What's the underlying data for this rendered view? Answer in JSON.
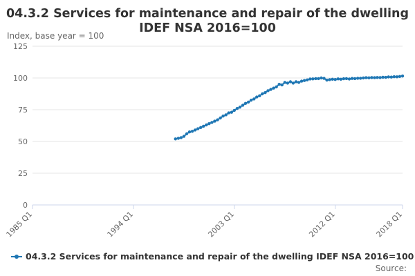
{
  "chart_data": {
    "type": "line",
    "title_lines": [
      "04.3.2 Services for maintenance and repair of the dwelling",
      "IDEF NSA 2016=100"
    ],
    "ylabel": "Index, base year = 100",
    "ylim": [
      0,
      125
    ],
    "yticks": [
      "0",
      "25",
      "50",
      "75",
      "100",
      "125"
    ],
    "xticks": [
      "1985 Q1",
      "1994 Q1",
      "2003 Q1",
      "2012 Q1",
      "2018 Q1"
    ],
    "grid": true,
    "legend_position": "bottom",
    "series": [
      {
        "name": "04.3.2 Services for maintenance and repair of the dwelling IDEF NSA 2016=100",
        "color": "#1f77b4",
        "x": [
          "1997 Q4",
          "1998 Q1",
          "1998 Q2",
          "1998 Q3",
          "1998 Q4",
          "1999 Q1",
          "1999 Q2",
          "1999 Q3",
          "1999 Q4",
          "2000 Q1",
          "2000 Q2",
          "2000 Q3",
          "2000 Q4",
          "2001 Q1",
          "2001 Q2",
          "2001 Q3",
          "2001 Q4",
          "2002 Q1",
          "2002 Q2",
          "2002 Q3",
          "2002 Q4",
          "2003 Q1",
          "2003 Q2",
          "2003 Q3",
          "2003 Q4",
          "2004 Q1",
          "2004 Q2",
          "2004 Q3",
          "2004 Q4",
          "2005 Q1",
          "2005 Q2",
          "2005 Q3",
          "2005 Q4",
          "2006 Q1",
          "2006 Q2",
          "2006 Q3",
          "2006 Q4",
          "2007 Q1",
          "2007 Q2",
          "2007 Q3",
          "2007 Q4",
          "2008 Q1",
          "2008 Q2",
          "2008 Q3",
          "2008 Q4",
          "2009 Q1",
          "2009 Q2",
          "2009 Q3",
          "2009 Q4",
          "2010 Q1",
          "2010 Q2",
          "2010 Q3",
          "2010 Q4",
          "2011 Q1",
          "2011 Q2",
          "2011 Q3",
          "2011 Q4",
          "2012 Q1",
          "2012 Q2",
          "2012 Q3",
          "2012 Q4",
          "2013 Q1",
          "2013 Q2",
          "2013 Q3",
          "2013 Q4",
          "2014 Q1",
          "2014 Q2",
          "2014 Q3",
          "2014 Q4",
          "2015 Q1",
          "2015 Q2",
          "2015 Q3",
          "2015 Q4",
          "2016 Q1",
          "2016 Q2",
          "2016 Q3",
          "2016 Q4",
          "2017 Q1",
          "2017 Q2",
          "2017 Q3",
          "2017 Q4",
          "2018 Q1"
        ],
        "values": [
          52,
          52.5,
          53,
          54,
          56,
          57.5,
          58,
          59,
          60,
          61,
          62,
          63,
          64,
          65,
          66,
          67,
          68.5,
          70,
          71,
          72.5,
          73,
          74.5,
          76,
          77,
          78.5,
          80,
          81,
          82.5,
          83.5,
          85,
          86,
          87.5,
          88.5,
          90,
          91,
          92,
          93,
          95,
          94.5,
          96.5,
          96,
          97,
          96,
          97,
          96.5,
          97.5,
          98,
          98.5,
          99.2,
          99.3,
          99.5,
          99.5,
          100,
          99.7,
          98.3,
          98.7,
          99,
          98.8,
          99.3,
          99,
          99.4,
          99.5,
          99.2,
          99.6,
          99.5,
          99.8,
          99.8,
          100,
          100.2,
          100.1,
          100.3,
          100.2,
          100.4,
          100.3,
          100.6,
          100.5,
          100.8,
          100.7,
          101,
          100.9,
          101.2,
          101.5
        ]
      }
    ]
  },
  "source_label": "Source:"
}
